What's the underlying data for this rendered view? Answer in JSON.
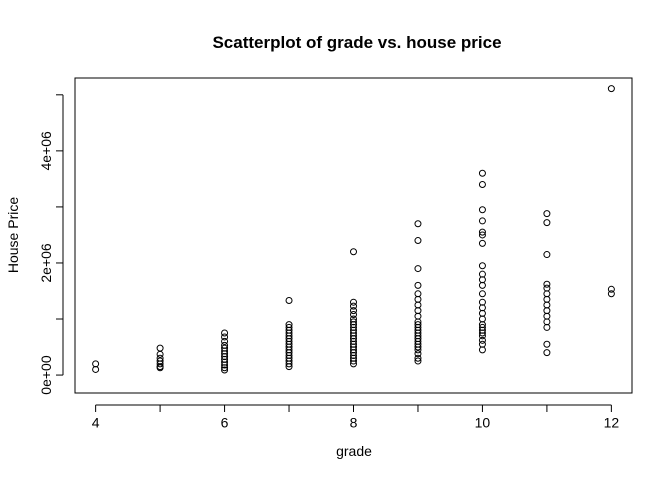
{
  "chart_data": {
    "type": "scatter",
    "title": "Scatterplot of grade vs. house price",
    "x_label": "grade",
    "y_label": "House Price",
    "color": "#000000",
    "xlim": [
      3.68,
      12.32
    ],
    "ylim": [
      -320000,
      5300000
    ],
    "xticks": [
      4,
      {
        "value": 5,
        "label": null
      },
      6,
      {
        "value": 7,
        "label": null
      },
      8,
      {
        "value": 9,
        "label": null
      },
      10,
      {
        "value": 11,
        "label": null
      },
      12
    ],
    "yticks": [
      {
        "value": 0,
        "label": "0e+00"
      },
      {
        "value": 1000000,
        "label": null
      },
      {
        "value": 2000000,
        "label": "2e+06"
      },
      {
        "value": 3000000,
        "label": null
      },
      {
        "value": 4000000,
        "label": "4e+06"
      },
      {
        "value": 5000000,
        "label": null
      }
    ],
    "x": [
      4,
      4,
      5,
      5,
      5,
      5,
      5,
      5,
      5,
      6,
      6,
      6,
      6,
      6,
      6,
      6,
      6,
      6,
      6,
      6,
      6,
      6,
      7,
      7,
      7,
      7,
      7,
      7,
      7,
      7,
      7,
      7,
      7,
      7,
      7,
      7,
      7,
      7,
      7,
      8,
      8,
      8,
      8,
      8,
      8,
      8,
      8,
      8,
      8,
      8,
      8,
      8,
      8,
      8,
      8,
      8,
      8,
      8,
      8,
      8,
      8,
      9,
      9,
      9,
      9,
      9,
      9,
      9,
      9,
      9,
      9,
      9,
      9,
      9,
      9,
      9,
      9,
      9,
      9,
      9,
      9,
      9,
      9,
      9,
      10,
      10,
      10,
      10,
      10,
      10,
      10,
      10,
      10,
      10,
      10,
      10,
      10,
      10,
      10,
      10,
      10,
      10,
      10,
      10,
      10,
      10,
      10,
      10,
      11,
      11,
      11,
      11,
      11,
      11,
      11,
      11,
      11,
      11,
      11,
      11,
      11,
      11,
      12,
      12,
      12
    ],
    "y": [
      200000,
      100000,
      480000,
      370000,
      300000,
      250000,
      200000,
      150000,
      130000,
      750000,
      680000,
      600000,
      530000,
      480000,
      430000,
      380000,
      330000,
      280000,
      230000,
      180000,
      130000,
      90000,
      1330000,
      900000,
      850000,
      800000,
      750000,
      700000,
      650000,
      600000,
      550000,
      500000,
      450000,
      400000,
      350000,
      300000,
      250000,
      200000,
      150000,
      2200000,
      1300000,
      1230000,
      1150000,
      1080000,
      1000000,
      950000,
      900000,
      850000,
      800000,
      750000,
      700000,
      650000,
      600000,
      550000,
      500000,
      450000,
      400000,
      350000,
      300000,
      250000,
      200000,
      2700000,
      2400000,
      1900000,
      1600000,
      1450000,
      1350000,
      1250000,
      1150000,
      1050000,
      950000,
      900000,
      850000,
      800000,
      750000,
      700000,
      650000,
      600000,
      550000,
      500000,
      450000,
      380000,
      300000,
      250000,
      3600000,
      3400000,
      2950000,
      2750000,
      2550000,
      2500000,
      2350000,
      1950000,
      1800000,
      1700000,
      1600000,
      1450000,
      1300000,
      1200000,
      1100000,
      1000000,
      900000,
      850000,
      800000,
      750000,
      700000,
      620000,
      550000,
      450000,
      2880000,
      2720000,
      2150000,
      1620000,
      1550000,
      1450000,
      1350000,
      1250000,
      1150000,
      1050000,
      950000,
      850000,
      550000,
      400000,
      5110000,
      1530000,
      1450000
    ]
  }
}
